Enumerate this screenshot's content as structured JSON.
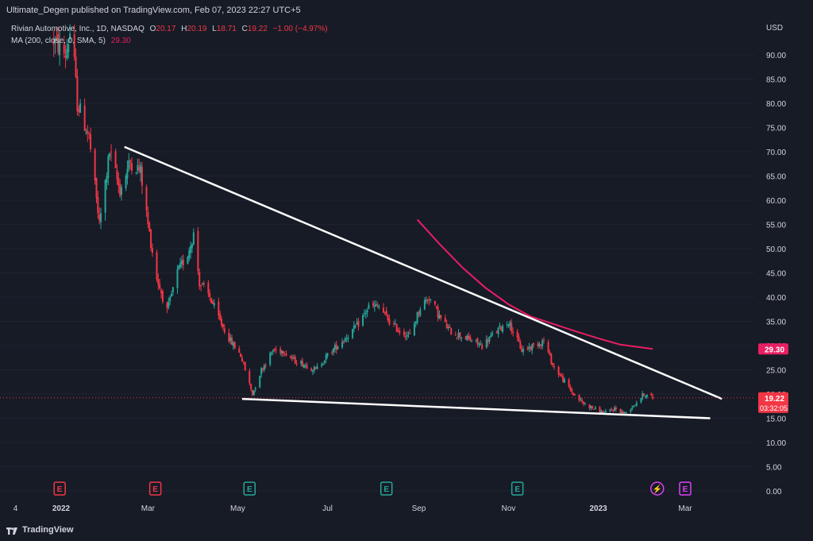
{
  "header": {
    "published": "Ultimate_Degen published on TradingView.com, Feb 07, 2023 22:27 UTC+5"
  },
  "legend": {
    "symbol": "Rivian Automotive, Inc., 1D, NASDAQ",
    "o_label": "O",
    "o_value": "20.17",
    "h_label": "H",
    "h_value": "20.19",
    "l_label": "L",
    "l_value": "18.71",
    "c_label": "C",
    "c_value": "19.22",
    "change": "−1.00 (−4.97%)",
    "ma_label": "MA (200, close, 0, SMA, 5)",
    "ma_value": "29.30"
  },
  "footer": {
    "brand": "TradingView",
    "logo_icon": "tradingview-logo-icon"
  },
  "colors": {
    "background": "#171b26",
    "up": "#26a69a",
    "down": "#f23645",
    "ma": "#e91e63",
    "trendline": "#ffffff"
  },
  "chart_data": {
    "type": "candlestick",
    "currency_label": "USD",
    "ylim": [
      0,
      95
    ],
    "y_ticks": [
      "90.00",
      "85.00",
      "80.00",
      "75.00",
      "70.00",
      "65.00",
      "60.00",
      "55.00",
      "50.00",
      "45.00",
      "40.00",
      "35.00",
      "30.00",
      "25.00",
      "20.00",
      "15.00",
      "10.00",
      "5.00",
      "0.00"
    ],
    "x_ticks": [
      {
        "label": "4",
        "date": "2021-12-01"
      },
      {
        "label": "2022",
        "date": "2022-01-01"
      },
      {
        "label": "Mar",
        "date": "2022-03-01"
      },
      {
        "label": "May",
        "date": "2022-05-01"
      },
      {
        "label": "Jul",
        "date": "2022-07-01"
      },
      {
        "label": "Sep",
        "date": "2022-09-01"
      },
      {
        "label": "Nov",
        "date": "2022-11-01"
      },
      {
        "label": "2023",
        "date": "2023-01-01"
      },
      {
        "label": "Mar",
        "date": "2023-03-01"
      }
    ],
    "price_path": [
      [
        "2021-12-27",
        93
      ],
      [
        "2022-01-04",
        90
      ],
      [
        "2022-01-08",
        96
      ],
      [
        "2022-01-12",
        80
      ],
      [
        "2022-01-20",
        73
      ],
      [
        "2022-01-27",
        55
      ],
      [
        "2022-02-03",
        70
      ],
      [
        "2022-02-10",
        62
      ],
      [
        "2022-02-17",
        68
      ],
      [
        "2022-02-24",
        66
      ],
      [
        "2022-03-01",
        55
      ],
      [
        "2022-03-07",
        44
      ],
      [
        "2022-03-14",
        37
      ],
      [
        "2022-03-21",
        45
      ],
      [
        "2022-03-28",
        49
      ],
      [
        "2022-04-01",
        53
      ],
      [
        "2022-04-05",
        43
      ],
      [
        "2022-04-12",
        40
      ],
      [
        "2022-04-19",
        35
      ],
      [
        "2022-04-26",
        31
      ],
      [
        "2022-05-03",
        28
      ],
      [
        "2022-05-11",
        20
      ],
      [
        "2022-05-17",
        25
      ],
      [
        "2022-05-25",
        29
      ],
      [
        "2022-06-01",
        29
      ],
      [
        "2022-06-08",
        27
      ],
      [
        "2022-06-16",
        26
      ],
      [
        "2022-06-23",
        25
      ],
      [
        "2022-07-01",
        28
      ],
      [
        "2022-07-11",
        31
      ],
      [
        "2022-07-21",
        34
      ],
      [
        "2022-07-29",
        38
      ],
      [
        "2022-08-05",
        38
      ],
      [
        "2022-08-12",
        35
      ],
      [
        "2022-08-19",
        33
      ],
      [
        "2022-08-26",
        32
      ],
      [
        "2022-09-02",
        38
      ],
      [
        "2022-09-08",
        40
      ],
      [
        "2022-09-15",
        36
      ],
      [
        "2022-09-22",
        33
      ],
      [
        "2022-09-30",
        32
      ],
      [
        "2022-10-07",
        31
      ],
      [
        "2022-10-14",
        30
      ],
      [
        "2022-10-24",
        33
      ],
      [
        "2022-11-01",
        35
      ],
      [
        "2022-11-10",
        29
      ],
      [
        "2022-11-18",
        30
      ],
      [
        "2022-11-25",
        31
      ],
      [
        "2022-12-01",
        26
      ],
      [
        "2022-12-08",
        23
      ],
      [
        "2022-12-15",
        20
      ],
      [
        "2022-12-22",
        18
      ],
      [
        "2022-12-29",
        17
      ],
      [
        "2023-01-05",
        16
      ],
      [
        "2023-01-12",
        17
      ],
      [
        "2023-01-19",
        16
      ],
      [
        "2023-01-26",
        18
      ],
      [
        "2023-02-01",
        20
      ],
      [
        "2023-02-07",
        19.22
      ]
    ],
    "ma_200": [
      [
        "2022-08-31",
        56
      ],
      [
        "2022-09-15",
        51
      ],
      [
        "2022-10-01",
        46
      ],
      [
        "2022-10-16",
        42
      ],
      [
        "2022-11-01",
        38.5
      ],
      [
        "2022-11-16",
        36
      ],
      [
        "2022-12-01",
        34.5
      ],
      [
        "2022-12-16",
        33
      ],
      [
        "2023-01-01",
        31.5
      ],
      [
        "2023-01-16",
        30.2
      ],
      [
        "2023-02-07",
        29.3
      ]
    ],
    "trendlines": [
      {
        "name": "upper",
        "from": [
          "2022-02-13",
          71
        ],
        "to": [
          "2023-03-26",
          19
        ]
      },
      {
        "name": "lower",
        "from": [
          "2022-05-04",
          19
        ],
        "to": [
          "2023-03-18",
          15
        ]
      }
    ],
    "price_labels": [
      {
        "value": "29.30",
        "color": "#e91e63",
        "level": 29.3
      },
      {
        "value": "19.22",
        "sub": "03:32:05",
        "color": "#f23645",
        "level": 19.22
      }
    ],
    "events": [
      {
        "date": "2021-12-31",
        "glyph": "E",
        "color": "#f23645"
      },
      {
        "date": "2022-03-06",
        "glyph": "E",
        "color": "#f23645"
      },
      {
        "date": "2022-05-09",
        "glyph": "E",
        "color": "#26a69a"
      },
      {
        "date": "2022-08-10",
        "glyph": "E",
        "color": "#26a69a"
      },
      {
        "date": "2022-11-07",
        "glyph": "E",
        "color": "#26a69a"
      },
      {
        "date": "2023-02-10",
        "glyph": "⚡",
        "color": "#e040fb"
      },
      {
        "date": "2023-03-01",
        "glyph": "E",
        "color": "#e040fb"
      }
    ]
  }
}
